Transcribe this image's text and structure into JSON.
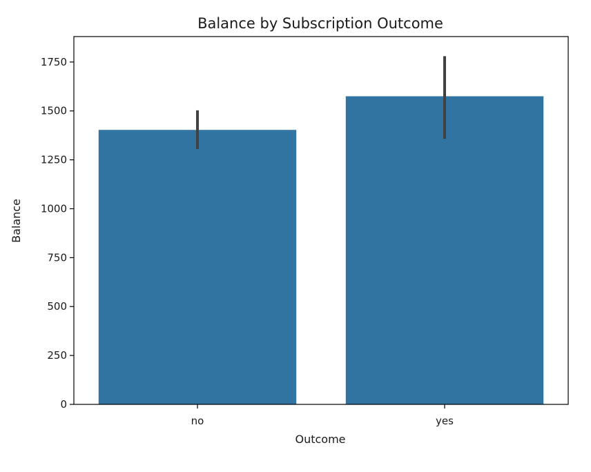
{
  "chart_data": {
    "type": "bar",
    "title": "Balance by Subscription Outcome",
    "xlabel": "Outcome",
    "ylabel": "Balance",
    "categories": [
      "no",
      "yes"
    ],
    "values": [
      1403,
      1575
    ],
    "error_bars": [
      {
        "low": 1305,
        "high": 1503
      },
      {
        "low": 1357,
        "high": 1780
      }
    ],
    "ylim": [
      0,
      1880
    ],
    "yticks": [
      0,
      250,
      500,
      750,
      1000,
      1250,
      1500,
      1750
    ],
    "grid": false,
    "legend": "none",
    "bar_color": "#3274a1",
    "error_color": "#424242"
  }
}
